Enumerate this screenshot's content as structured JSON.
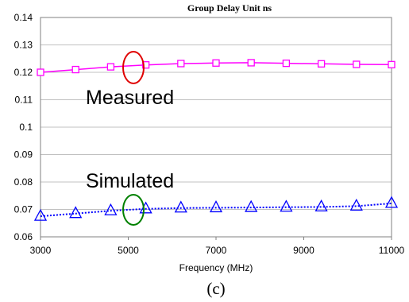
{
  "chart_data": {
    "type": "line",
    "title": "Group Delay Unit ns",
    "xlabel": "Frequency (MHz)",
    "ylabel": "",
    "xlim": [
      3000,
      11000
    ],
    "ylim": [
      0.06,
      0.14
    ],
    "xticks": [
      "3000",
      "5000",
      "7000",
      "9000",
      "11000"
    ],
    "yticks": [
      "0.06",
      "0.07",
      "0.08",
      "0.09",
      "0.1",
      "0.11",
      "0.12",
      "0.13",
      "0.14"
    ],
    "grid": "horizontal",
    "series": [
      {
        "name": "Measured",
        "color": "#ff00ff",
        "marker": "square",
        "line_style": "solid",
        "x": [
          3000,
          3800,
          4600,
          5400,
          6200,
          7000,
          7800,
          8600,
          9400,
          10200,
          11000
        ],
        "y": [
          0.12,
          0.121,
          0.122,
          0.1227,
          0.1232,
          0.1234,
          0.1235,
          0.1233,
          0.1231,
          0.1229,
          0.1228
        ]
      },
      {
        "name": "Simulated",
        "color": "#0000ff",
        "marker": "triangle",
        "line_style": "dotted",
        "x": [
          3000,
          3800,
          4600,
          5400,
          6200,
          7000,
          7800,
          8600,
          9400,
          10200,
          11000
        ],
        "y": [
          0.0675,
          0.0685,
          0.0695,
          0.0702,
          0.0705,
          0.0706,
          0.0707,
          0.0708,
          0.0709,
          0.0712,
          0.0722
        ]
      }
    ],
    "annotations": [
      {
        "text": "Measured",
        "ellipse_color": "#e00000"
      },
      {
        "text": "Simulated",
        "ellipse_color": "#008000"
      }
    ]
  },
  "caption": "(c)"
}
